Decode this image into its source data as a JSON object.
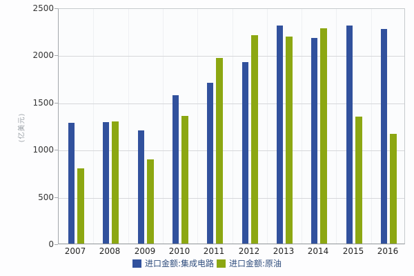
{
  "chart": {
    "y_axis_title": "(亿美元)",
    "colors": {
      "series_ic": "#31519d",
      "series_oil": "#8ca712",
      "gridline": "#d5d7da",
      "plot_background": "#fbfcfd",
      "axis_text": "#333333",
      "legend_text": "#2e4c7c"
    }
  },
  "chart_data": {
    "type": "bar",
    "title": "",
    "categories": [
      "2007",
      "2008",
      "2009",
      "2010",
      "2011",
      "2012",
      "2013",
      "2014",
      "2015",
      "2016"
    ],
    "series": [
      {
        "name": "进口金额:集成电路",
        "color": "#31519d",
        "values": [
          1277,
          1288,
          1199,
          1570,
          1702,
          1921,
          2313,
          2176,
          2307,
          2271
        ]
      },
      {
        "name": "进口金额:原油",
        "color": "#8ca712",
        "values": [
          797,
          1295,
          893,
          1351,
          1967,
          2206,
          2196,
          2283,
          1344,
          1165
        ]
      }
    ],
    "xlabel": "",
    "ylabel": "(亿美元)",
    "ylim": [
      0,
      2500
    ],
    "y_ticks": [
      0,
      500,
      1000,
      1500,
      2000,
      2500
    ],
    "grid": true,
    "legend_position": "bottom"
  }
}
